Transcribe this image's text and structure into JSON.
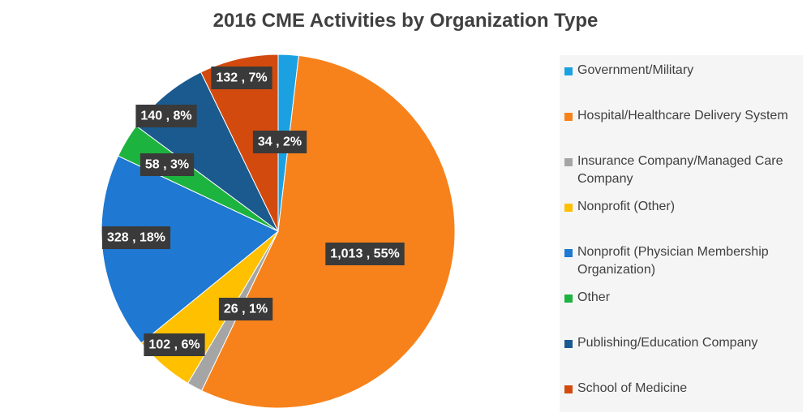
{
  "chart_data": {
    "type": "pie",
    "title": "2016 CME Activities by Organization Type",
    "legend_position": "right",
    "slices": [
      {
        "name": "Government/Military",
        "value": 34,
        "percent": "2%",
        "label": "34 , 2%",
        "color": "#1ba1e2"
      },
      {
        "name": "Hospital/Healthcare Delivery System",
        "value": 1013,
        "percent": "55%",
        "label": "1,013 , 55%",
        "color": "#f7821b"
      },
      {
        "name": "Insurance Company/Managed Care Company",
        "value": 26,
        "percent": "1%",
        "label": "26 , 1%",
        "color": "#a5a5a5"
      },
      {
        "name": "Nonprofit (Other)",
        "value": 102,
        "percent": "6%",
        "label": "102 , 6%",
        "color": "#ffc000"
      },
      {
        "name": "Nonprofit (Physician Membership Organization)",
        "value": 328,
        "percent": "18%",
        "label": "328 , 18%",
        "color": "#1f78d1"
      },
      {
        "name": "Other",
        "value": 58,
        "percent": "3%",
        "label": "58 , 3%",
        "color": "#1db33f"
      },
      {
        "name": "Publishing/Education Company",
        "value": 140,
        "percent": "8%",
        "label": "140 , 8%",
        "color": "#1a5a8e"
      },
      {
        "name": "School of Medicine",
        "value": 132,
        "percent": "7%",
        "label": "132 , 7%",
        "color": "#d34a0e"
      }
    ]
  }
}
